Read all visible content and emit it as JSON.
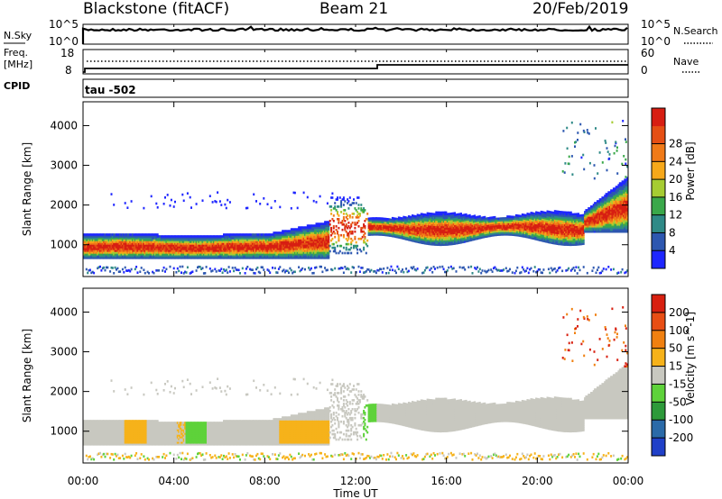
{
  "header": {
    "station": "Blackstone (fitACF)",
    "beam": "Beam 21",
    "date": "20/Feb/2019"
  },
  "noise_panel": {
    "left_label": "N.Sky",
    "right_label": "N.Search",
    "top_tick": "10^5",
    "bottom_tick": "10^0"
  },
  "freq_panel": {
    "left_label_1": "Freq.",
    "left_label_2": "[MHz]",
    "cpid_label": "CPID",
    "right_label": "Nave",
    "left_ticks": [
      "18",
      "8"
    ],
    "right_ticks": [
      "60",
      "0"
    ]
  },
  "cpid_panel": {
    "text": "tau -502"
  },
  "time_axis": {
    "label": "Time UT",
    "ticks": [
      "00:00",
      "04:00",
      "08:00",
      "12:00",
      "16:00",
      "20:00",
      "00:00"
    ]
  },
  "chart_data": [
    {
      "type": "heatmap",
      "name": "power",
      "ylabel": "Slant Range [km]",
      "yticks": [
        "1000",
        "2000",
        "3000",
        "4000"
      ],
      "ylim": [
        200,
        4600
      ],
      "xlim_hours": [
        0,
        24
      ],
      "colorbar": {
        "label": "Power [dB]",
        "ticks": [
          "4",
          "8",
          "12",
          "16",
          "20",
          "24",
          "28"
        ],
        "colors": [
          "#1e26ff",
          "#2d57b0",
          "#2f8a87",
          "#3aa84a",
          "#a6cc32",
          "#f6a81a",
          "#f07a18",
          "#e54f14",
          "#d71e12"
        ]
      },
      "echo_regions": [
        {
          "t": [
            0.0,
            10.8
          ],
          "range": [
            650,
            1250
          ],
          "level": "strong"
        },
        {
          "t": [
            10.8,
            12.5
          ],
          "range": [
            750,
            2200
          ],
          "level": "medium"
        },
        {
          "t": [
            12.5,
            22.0
          ],
          "range": [
            900,
            1800
          ],
          "level": "strong"
        },
        {
          "t": [
            22.0,
            24.0
          ],
          "range": [
            1200,
            2900
          ],
          "level": "medium"
        },
        {
          "t": [
            1.0,
            11.0
          ],
          "range": [
            1800,
            2400
          ],
          "level": "weak"
        },
        {
          "t": [
            0.0,
            24.0
          ],
          "range": [
            230,
            420
          ],
          "level": "weak"
        }
      ]
    },
    {
      "type": "heatmap",
      "name": "velocity",
      "ylabel": "Slant Range [km]",
      "yticks": [
        "1000",
        "2000",
        "3000",
        "4000"
      ],
      "ylim": [
        200,
        4600
      ],
      "xlim_hours": [
        0,
        24
      ],
      "colorbar": {
        "label": "Velocity [m s^-1]",
        "ticks": [
          "200",
          "100",
          "50",
          "15",
          "-15",
          "-50",
          "-100",
          "-200"
        ],
        "colors": [
          "#2040c8",
          "#2a6aa8",
          "#2d9a3a",
          "#5ed23a",
          "#c8c8c0",
          "#f6b21a",
          "#f08010",
          "#e84e14",
          "#d82010"
        ]
      }
    }
  ]
}
